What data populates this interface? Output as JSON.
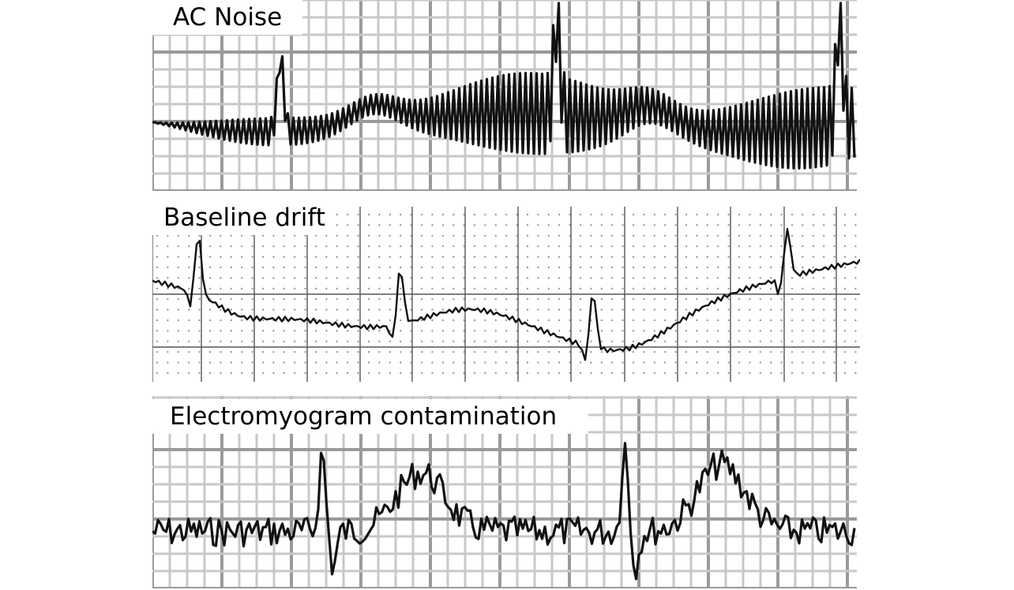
{
  "panels": [
    {
      "id": "ac-noise",
      "title": "AC Noise"
    },
    {
      "id": "baseline-drift",
      "title": "Baseline drift"
    },
    {
      "id": "emg",
      "title": "Electromyogram contamination"
    }
  ],
  "colors": {
    "background": "#ffffff",
    "trace": "#111111",
    "grid_minor": "#c8c8c8",
    "grid_major": "#9a9a9a",
    "grid_dots": "#8c8c8c",
    "grid_lines_dark": "#555555"
  }
}
